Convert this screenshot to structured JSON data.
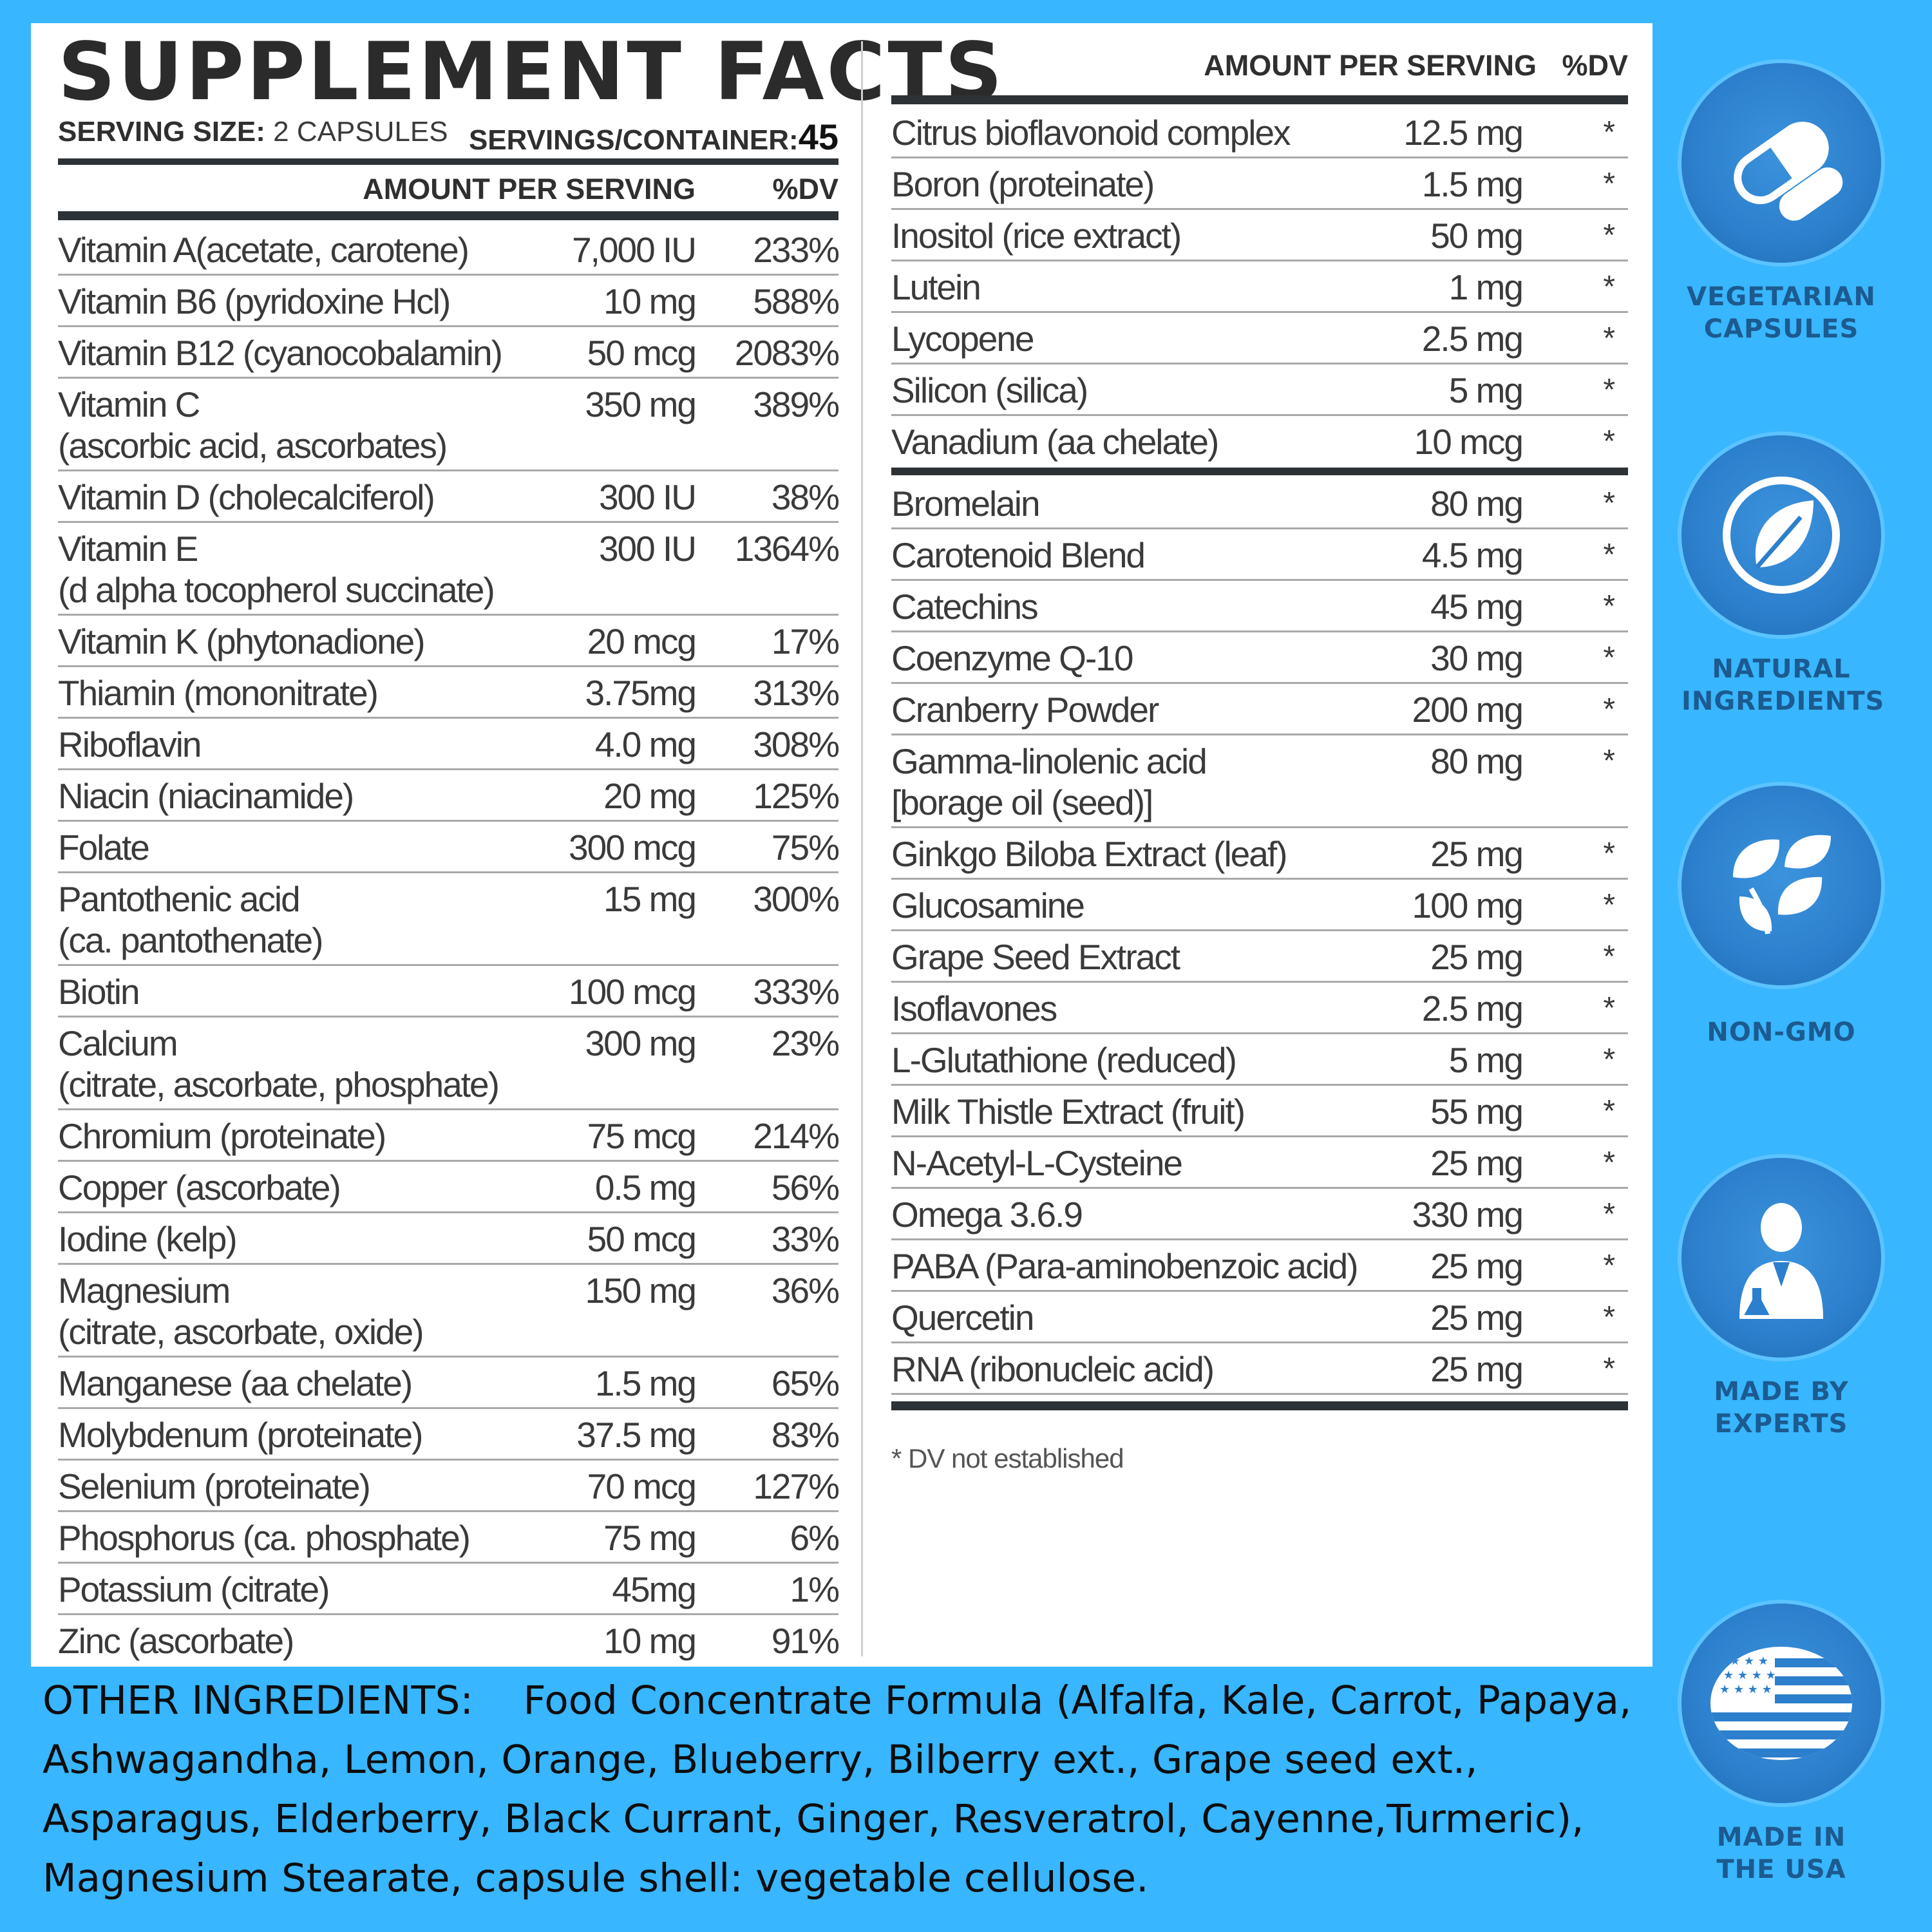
{
  "title": "SUPPLEMENT FACTS",
  "serving": {
    "size_label": "SERVING SIZE:",
    "size_value": "2 CAPSULES",
    "servings_label": "SERVINGS/CONTAINER:",
    "servings_value": "45"
  },
  "headers": {
    "amount": "AMOUNT PER SERVING",
    "dv": "%DV"
  },
  "left_nutrients": [
    {
      "name": "Vitamin A(acetate, carotene)",
      "amount": "7,000 IU",
      "dv": "233%"
    },
    {
      "name": "Vitamin B6 (pyridoxine Hcl)",
      "amount": "10 mg",
      "dv": "588%"
    },
    {
      "name": "Vitamin B12 (cyanocobalamin)",
      "amount": "50 mcg",
      "dv": "2083%"
    },
    {
      "name": "Vitamin C",
      "name2": "(ascorbic acid, ascorbates)",
      "amount": "350 mg",
      "dv": "389%"
    },
    {
      "name": "Vitamin D (cholecalciferol)",
      "amount": "300 IU",
      "dv": "38%"
    },
    {
      "name": "Vitamin E",
      "name2": "(d alpha tocopherol succinate)",
      "amount": "300 IU",
      "dv": "1364%"
    },
    {
      "name": "Vitamin K (phytonadione)",
      "amount": "20 mcg",
      "dv": "17%"
    },
    {
      "name": "Thiamin (mononitrate)",
      "amount": "3.75mg",
      "dv": "313%"
    },
    {
      "name": "Riboflavin",
      "amount": "4.0 mg",
      "dv": "308%"
    },
    {
      "name": "Niacin (niacinamide)",
      "amount": "20 mg",
      "dv": "125%"
    },
    {
      "name": "Folate",
      "amount": "300 mcg",
      "dv": "75%"
    },
    {
      "name": "Pantothenic acid",
      "name2": "(ca. pantothenate)",
      "amount": "15 mg",
      "dv": "300%"
    },
    {
      "name": "Biotin",
      "amount": "100 mcg",
      "dv": "333%"
    },
    {
      "name": "Calcium",
      "name2": "(citrate, ascorbate, phosphate)",
      "amount": "300 mg",
      "dv": "23%"
    },
    {
      "name": "Chromium (proteinate)",
      "amount": "75 mcg",
      "dv": "214%"
    },
    {
      "name": "Copper (ascorbate)",
      "amount": "0.5 mg",
      "dv": "56%"
    },
    {
      "name": "Iodine (kelp)",
      "amount": "50 mcg",
      "dv": "33%"
    },
    {
      "name": "Magnesium",
      "name2": "(citrate, ascorbate, oxide)",
      "amount": "150 mg",
      "dv": "36%"
    },
    {
      "name": "Manganese (aa chelate)",
      "amount": "1.5 mg",
      "dv": "65%"
    },
    {
      "name": "Molybdenum (proteinate)",
      "amount": "37.5 mg",
      "dv": "83%"
    },
    {
      "name": "Selenium (proteinate)",
      "amount": "70 mcg",
      "dv": "127%"
    },
    {
      "name": "Phosphorus (ca. phosphate)",
      "amount": "75 mg",
      "dv": "6%"
    },
    {
      "name": "Potassium (citrate)",
      "amount": "45mg",
      "dv": "1%"
    },
    {
      "name": "Zinc (ascorbate)",
      "amount": "10 mg",
      "dv": "91%"
    }
  ],
  "right_group1": [
    {
      "name": "Citrus bioflavonoid complex",
      "amount": "12.5 mg",
      "dv": "*"
    },
    {
      "name": "Boron (proteinate)",
      "amount": "1.5 mg",
      "dv": "*"
    },
    {
      "name": "Inositol (rice extract)",
      "amount": "50 mg",
      "dv": "*"
    },
    {
      "name": "Lutein",
      "amount": "1 mg",
      "dv": "*"
    },
    {
      "name": "Lycopene",
      "amount": "2.5 mg",
      "dv": "*"
    },
    {
      "name": "Silicon (silica)",
      "amount": "5 mg",
      "dv": "*"
    },
    {
      "name": "Vanadium (aa chelate)",
      "amount": "10 mcg",
      "dv": "*"
    }
  ],
  "right_group2": [
    {
      "name": "Bromelain",
      "amount": "80 mg",
      "dv": "*"
    },
    {
      "name": "Carotenoid Blend",
      "amount": "4.5 mg",
      "dv": "*"
    },
    {
      "name": "Catechins",
      "amount": "45 mg",
      "dv": "*"
    },
    {
      "name": "Coenzyme Q-10",
      "amount": "30 mg",
      "dv": "*"
    },
    {
      "name": "Cranberry Powder",
      "amount": "200 mg",
      "dv": "*"
    },
    {
      "name": "Gamma-linolenic acid",
      "name2": "[borage oil (seed)]",
      "amount": "80 mg",
      "dv": "*"
    },
    {
      "name": "Ginkgo Biloba Extract (leaf)",
      "amount": "25 mg",
      "dv": "*"
    },
    {
      "name": "Glucosamine",
      "amount": "100 mg",
      "dv": "*"
    },
    {
      "name": "Grape Seed Extract",
      "amount": "25 mg",
      "dv": "*"
    },
    {
      "name": "Isoflavones",
      "amount": "2.5 mg",
      "dv": "*"
    },
    {
      "name": "L-Glutathione (reduced)",
      "amount": "5 mg",
      "dv": "*"
    },
    {
      "name": "Milk Thistle Extract (fruit)",
      "amount": "55 mg",
      "dv": "*"
    },
    {
      "name": "N-Acetyl-L-Cysteine",
      "amount": "25 mg",
      "dv": "*"
    },
    {
      "name": "Omega 3.6.9",
      "amount": "330 mg",
      "dv": "*"
    },
    {
      "name": "PABA (Para-aminobenzoic acid)",
      "amount": "25 mg",
      "dv": "*"
    },
    {
      "name": "Quercetin",
      "amount": "25 mg",
      "dv": "*"
    },
    {
      "name": "RNA (ribonucleic acid)",
      "amount": "25 mg",
      "dv": "*"
    }
  ],
  "footnote": "* DV not established",
  "other_ingredients": {
    "label": "OTHER INGREDIENTS:",
    "text": "Food Concentrate Formula (Alfalfa, Kale, Carrot, Papaya, Ashwagandha, Lemon, Orange, Blueberry, Bilberry ext., Grape seed ext., Asparagus, Elderberry, Black Currant, Ginger, Resveratrol, Cayenne,Turmeric), Magnesium Stearate, capsule shell:  vegetable cellulose."
  },
  "badges": [
    {
      "icon": "capsule-icon",
      "line1": "VEGETARIAN",
      "line2": "CAPSULES"
    },
    {
      "icon": "leaf-icon",
      "line1": "NATURAL",
      "line2": "INGREDIENTS"
    },
    {
      "icon": "leaves-icon",
      "line1": "NON-GMO",
      "line2": ""
    },
    {
      "icon": "scientist-icon",
      "line1": "MADE BY",
      "line2": "EXPERTS"
    },
    {
      "icon": "us-flag-icon",
      "line1": "MADE IN",
      "line2": "THE USA"
    }
  ],
  "colors": {
    "background": "#38b6ff",
    "badge": "#2c7fcc",
    "badge_label": "#1c5a8f",
    "rule": "#2d3236"
  }
}
